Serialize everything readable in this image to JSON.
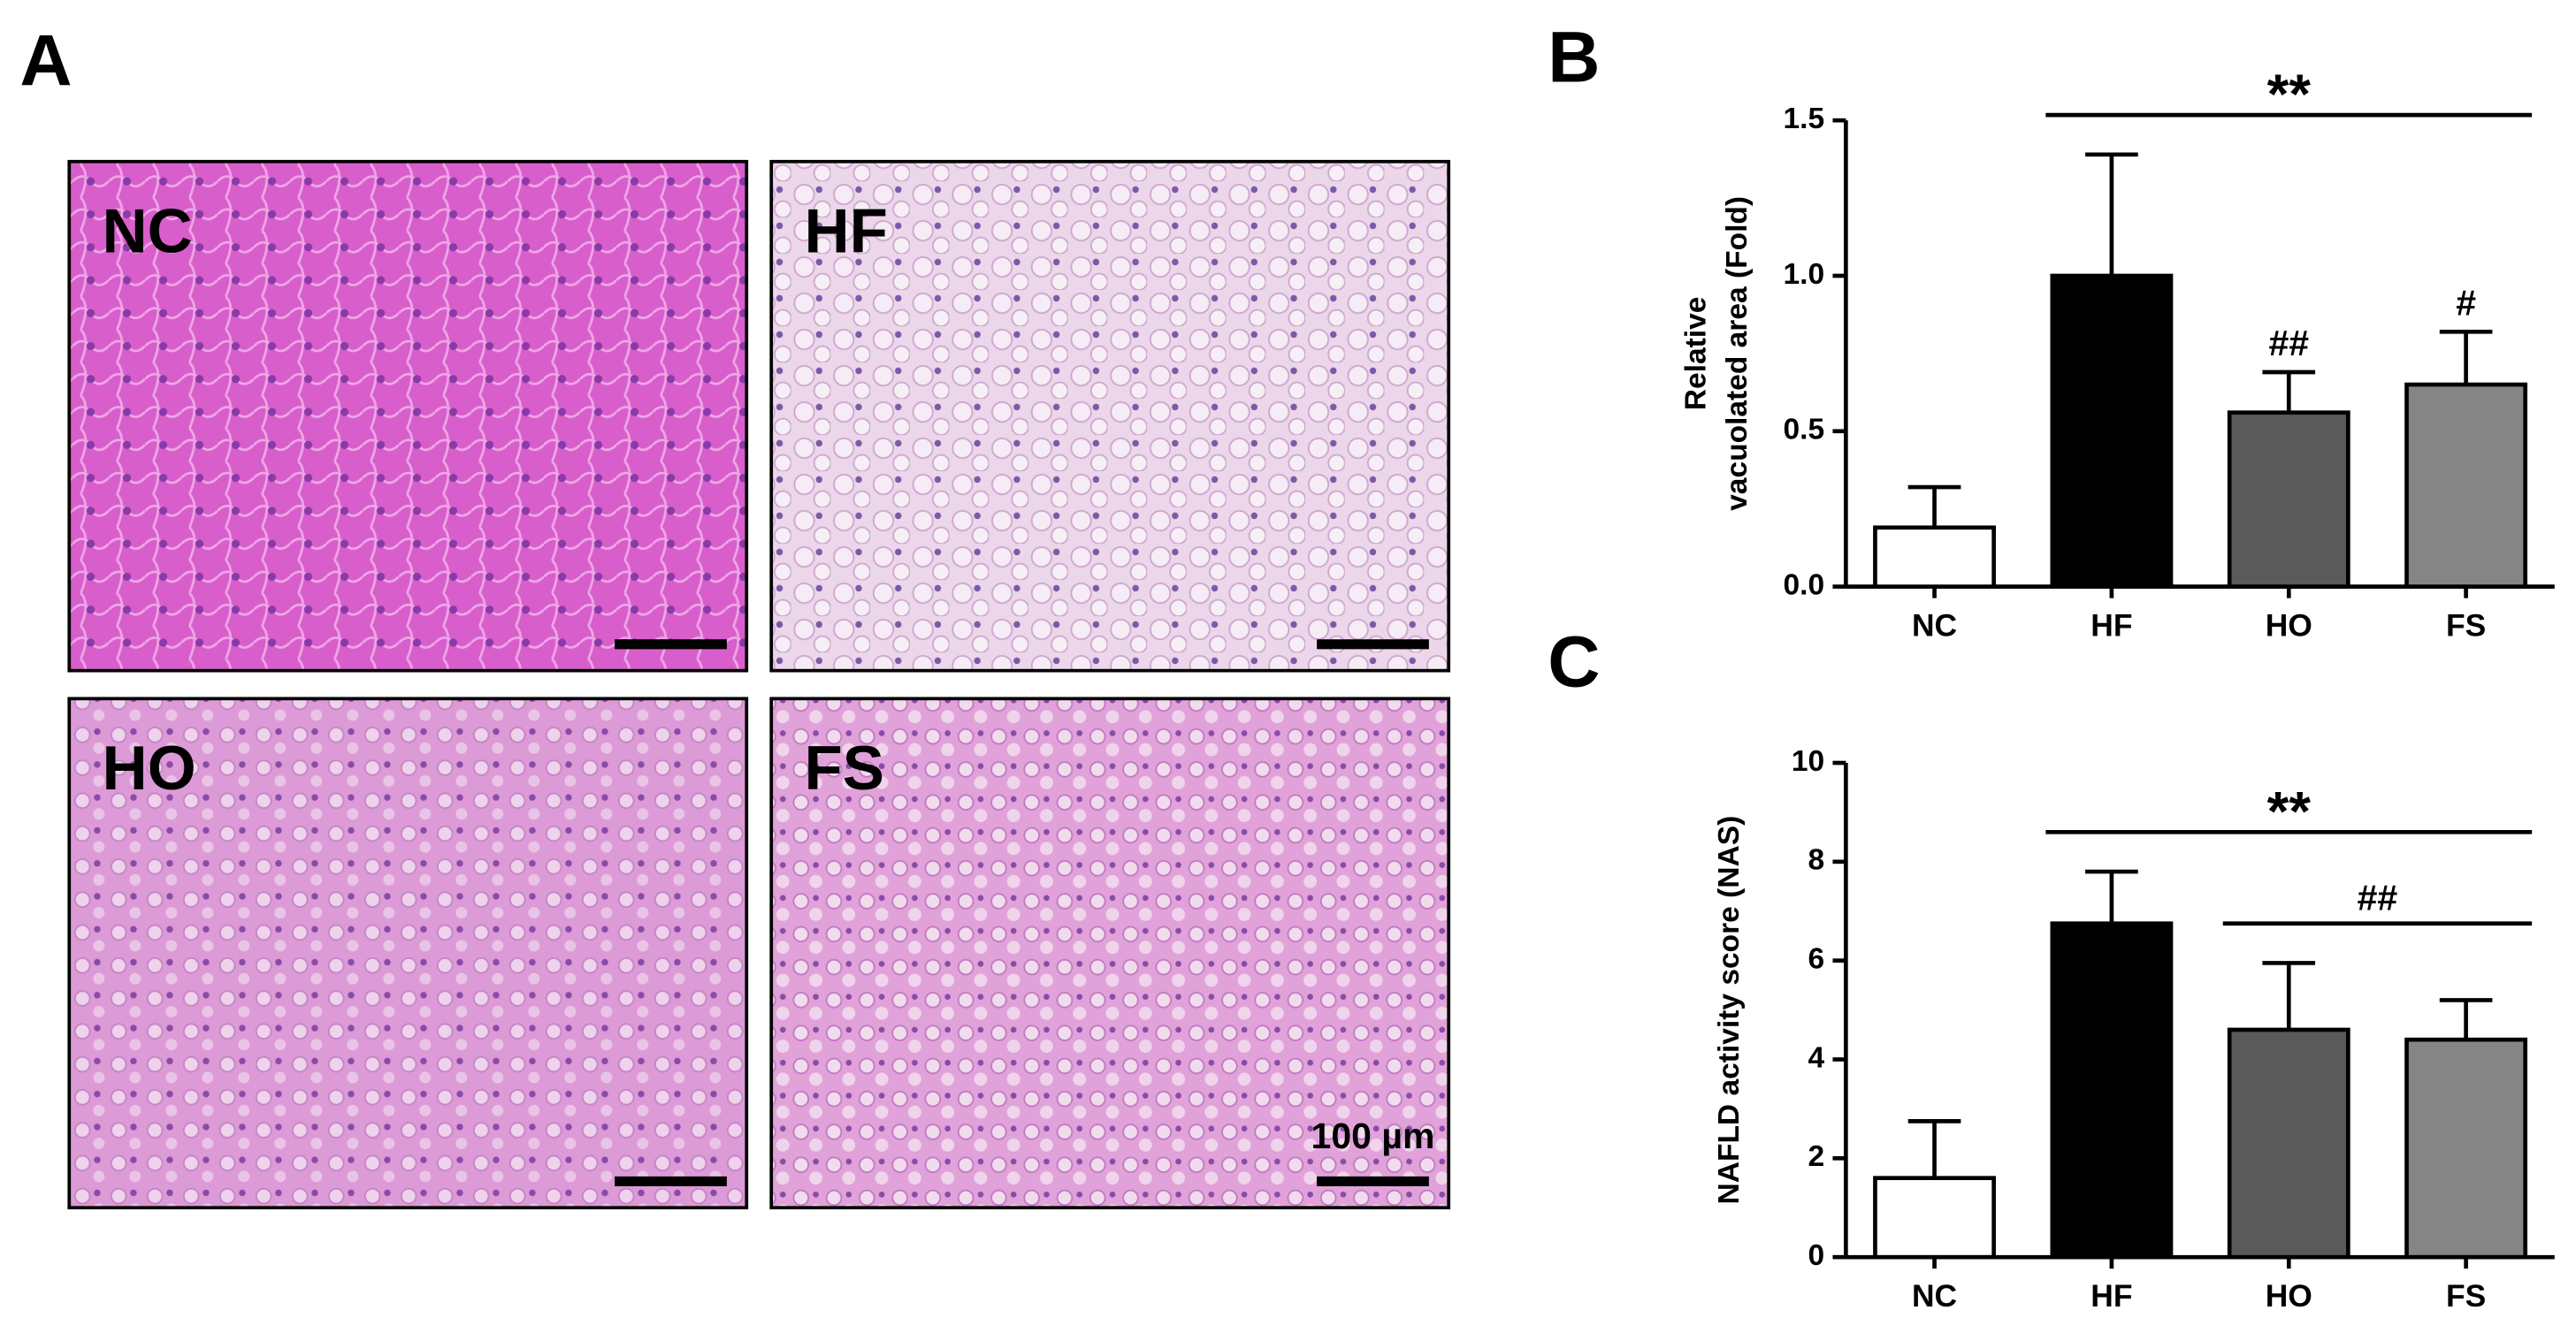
{
  "panel_a": {
    "label": "A",
    "images": [
      {
        "label": "NC"
      },
      {
        "label": "HF"
      },
      {
        "label": "HO"
      },
      {
        "label": "FS"
      }
    ],
    "scale_bar_label": "100 µm"
  },
  "chart_data": [
    {
      "type": "bar",
      "panel": "B",
      "ylabel": [
        "Relative",
        "vacuolated area (Fold)"
      ],
      "categories": [
        "NC",
        "HF",
        "HO",
        "FS"
      ],
      "values": [
        0.19,
        1.0,
        0.56,
        0.65
      ],
      "errors": [
        0.13,
        0.39,
        0.13,
        0.17
      ],
      "colors": [
        "#ffffff",
        "#000000",
        "#5a5a5a",
        "#858585"
      ],
      "ylim": [
        0,
        1.5
      ],
      "yticks": [
        {
          "value": 0,
          "label": "0.0"
        },
        0.5,
        {
          "value": 1,
          "label": "1.0"
        },
        1.5
      ],
      "annotations": [
        {
          "text": "**",
          "span": [
            "HF",
            "FS"
          ]
        },
        {
          "text": "##",
          "over": "HO"
        },
        {
          "text": "#",
          "over": "FS"
        }
      ]
    },
    {
      "type": "bar",
      "panel": "C",
      "ylabel": [
        "NAFLD activity score (NAS)"
      ],
      "categories": [
        "NC",
        "HF",
        "HO",
        "FS"
      ],
      "values": [
        1.6,
        6.75,
        4.6,
        4.4
      ],
      "errors": [
        1.15,
        1.05,
        1.35,
        0.8
      ],
      "colors": [
        "#ffffff",
        "#000000",
        "#5a5a5a",
        "#858585"
      ],
      "ylim": [
        0,
        10
      ],
      "yticks": [
        0,
        2,
        4,
        6,
        8,
        10
      ],
      "annotations": [
        {
          "text": "**",
          "span": [
            "HF",
            "FS"
          ]
        },
        {
          "text": "##",
          "span": [
            "HO",
            "FS"
          ]
        }
      ]
    }
  ]
}
